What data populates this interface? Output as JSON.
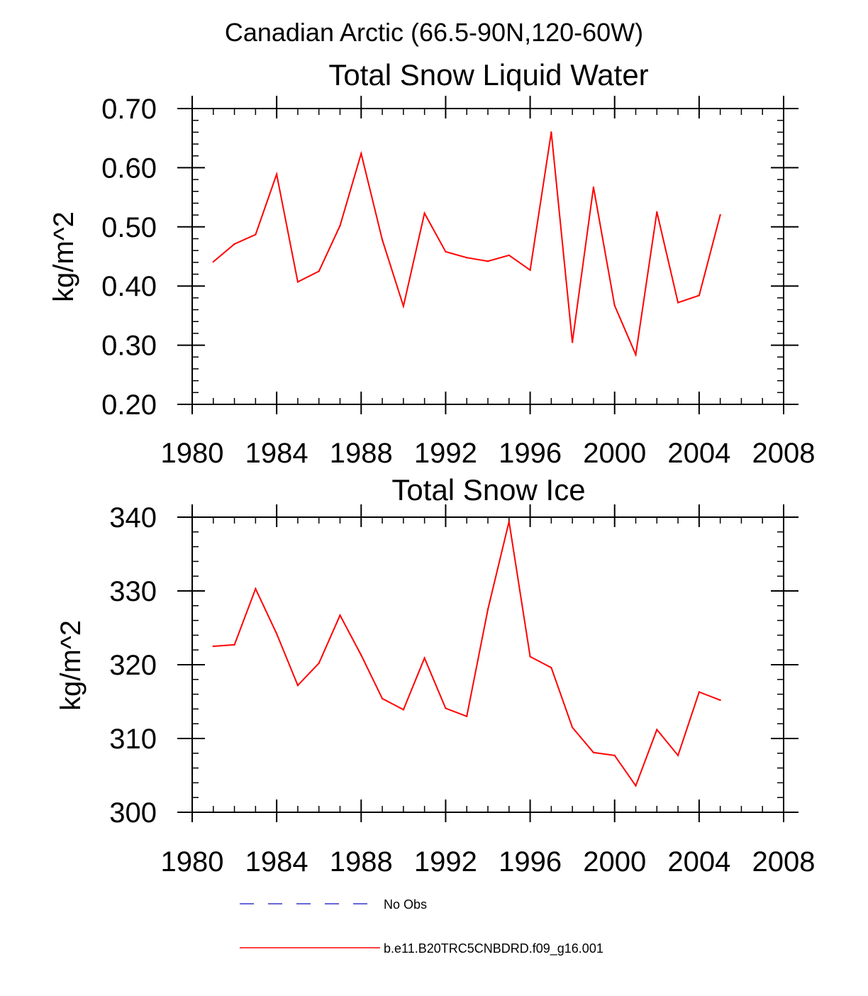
{
  "page_title": "Canadian Arctic (66.5-90N,120-60W)",
  "colors": {
    "model_line": "#ff0000",
    "obs_line": "#3333cc",
    "axis": "#000000"
  },
  "legend": {
    "obs_label": "No Obs",
    "model_label": "b.e11.B20TRC5CNBDRD.f09_g16.001"
  },
  "chart_data": [
    {
      "type": "line",
      "title": "Total Snow Liquid Water",
      "xlabel": "",
      "ylabel": "kg/m^2",
      "xlim": [
        1980,
        2008
      ],
      "ylim": [
        0.2,
        0.7
      ],
      "xticks": [
        1980,
        1984,
        1988,
        1992,
        1996,
        2000,
        2004,
        2008
      ],
      "xtick_labels": [
        "1980",
        "1984",
        "1988",
        "1992",
        "1996",
        "2000",
        "2004",
        "2008"
      ],
      "yticks": [
        0.2,
        0.3,
        0.4,
        0.5,
        0.6,
        0.7
      ],
      "ytick_labels": [
        "0.20",
        "0.30",
        "0.40",
        "0.50",
        "0.60",
        "0.70"
      ],
      "y_minor_step": 0.02,
      "x_minor_step": 1,
      "series": [
        {
          "name": "b.e11.B20TRC5CNBDRD.f09_g16.001",
          "x": [
            1981,
            1982,
            1983,
            1984,
            1985,
            1986,
            1987,
            1988,
            1989,
            1990,
            1991,
            1992,
            1993,
            1994,
            1995,
            1996,
            1997,
            1998,
            1999,
            2000,
            2001,
            2002,
            2003,
            2004,
            2005
          ],
          "values": [
            0.441,
            0.471,
            0.487,
            0.589,
            0.407,
            0.425,
            0.502,
            0.624,
            0.478,
            0.366,
            0.523,
            0.458,
            0.448,
            0.442,
            0.452,
            0.427,
            0.66,
            0.305,
            0.567,
            0.367,
            0.284,
            0.525,
            0.372,
            0.384,
            0.52
          ]
        }
      ]
    },
    {
      "type": "line",
      "title": "Total Snow Ice",
      "xlabel": "",
      "ylabel": "kg/m^2",
      "xlim": [
        1980,
        2008
      ],
      "ylim": [
        300,
        340
      ],
      "xticks": [
        1980,
        1984,
        1988,
        1992,
        1996,
        2000,
        2004,
        2008
      ],
      "xtick_labels": [
        "1980",
        "1984",
        "1988",
        "1992",
        "1996",
        "2000",
        "2004",
        "2008"
      ],
      "yticks": [
        300,
        310,
        320,
        330,
        340
      ],
      "ytick_labels": [
        "300",
        "310",
        "320",
        "330",
        "340"
      ],
      "y_minor_step": 2,
      "x_minor_step": 1,
      "series": [
        {
          "name": "b.e11.B20TRC5CNBDRD.f09_g16.001",
          "x": [
            1981,
            1982,
            1983,
            1984,
            1985,
            1986,
            1987,
            1988,
            1989,
            1990,
            1991,
            1992,
            1993,
            1994,
            1995,
            1996,
            1997,
            1998,
            1999,
            2000,
            2001,
            2002,
            2003,
            2004,
            2005
          ],
          "values": [
            322.5,
            322.7,
            330.3,
            324.2,
            317.2,
            320.2,
            326.7,
            321.3,
            315.4,
            313.9,
            320.9,
            314.1,
            313.0,
            327.5,
            339.4,
            321.1,
            319.6,
            311.5,
            308.1,
            307.7,
            303.6,
            311.2,
            307.7,
            316.3,
            315.2
          ]
        }
      ]
    }
  ]
}
